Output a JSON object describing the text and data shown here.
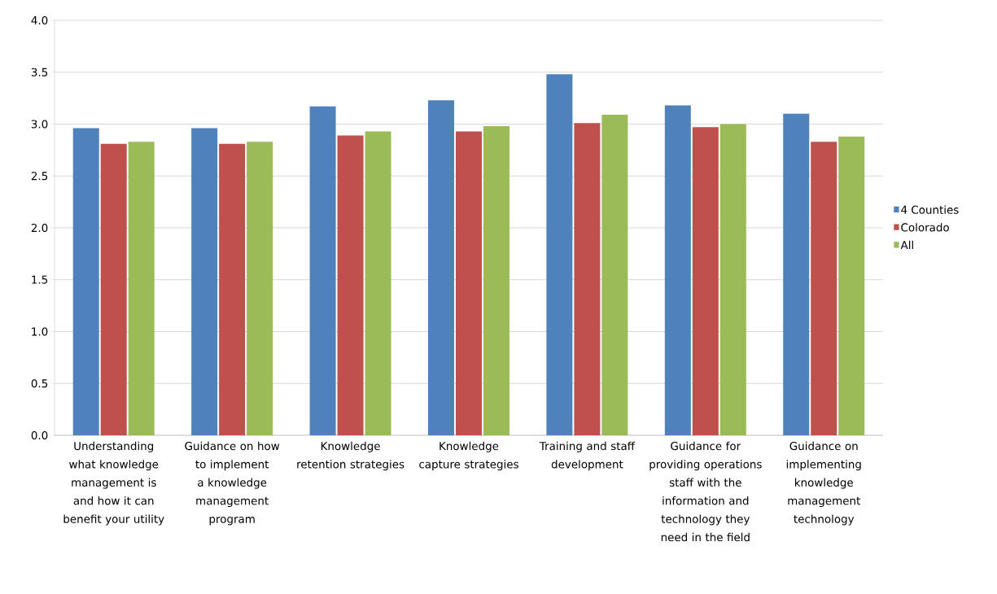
{
  "chart_data": {
    "type": "bar",
    "categories": [
      "Understanding what knowledge management is and how it can benefit your utility",
      "Guidance on how to implement a knowledge management program",
      "Knowledge retention strategies",
      "Knowledge capture strategies",
      "Training and staff development",
      "Guidance for providing operations staff with the information and technology they need in the field",
      "Guidance on implementing knowledge management technology"
    ],
    "series": [
      {
        "name": "4 Counties",
        "color": "#4f81bd",
        "values": [
          2.96,
          2.96,
          3.17,
          3.23,
          3.48,
          3.18,
          3.1
        ]
      },
      {
        "name": "Colorado",
        "color": "#c0504d",
        "values": [
          2.81,
          2.81,
          2.89,
          2.93,
          3.01,
          2.97,
          2.83
        ]
      },
      {
        "name": "All",
        "color": "#9bbb59",
        "values": [
          2.83,
          2.83,
          2.93,
          2.98,
          3.09,
          3.0,
          2.88
        ]
      }
    ],
    "ylim": [
      0,
      4.0
    ],
    "yticks": [
      {
        "value": 0,
        "label": "0.0"
      },
      {
        "value": 0.5,
        "label": "0.5"
      },
      {
        "value": 1,
        "label": "1.0"
      },
      {
        "value": 1.5,
        "label": "1.5"
      },
      {
        "value": 2,
        "label": "2.0"
      },
      {
        "value": 2.5,
        "label": "2.5"
      },
      {
        "value": 3,
        "label": "3.0"
      },
      {
        "value": 3.5,
        "label": "3.5"
      },
      {
        "value": 4,
        "label": "4.0"
      }
    ],
    "grid": "y",
    "legend": "right"
  }
}
